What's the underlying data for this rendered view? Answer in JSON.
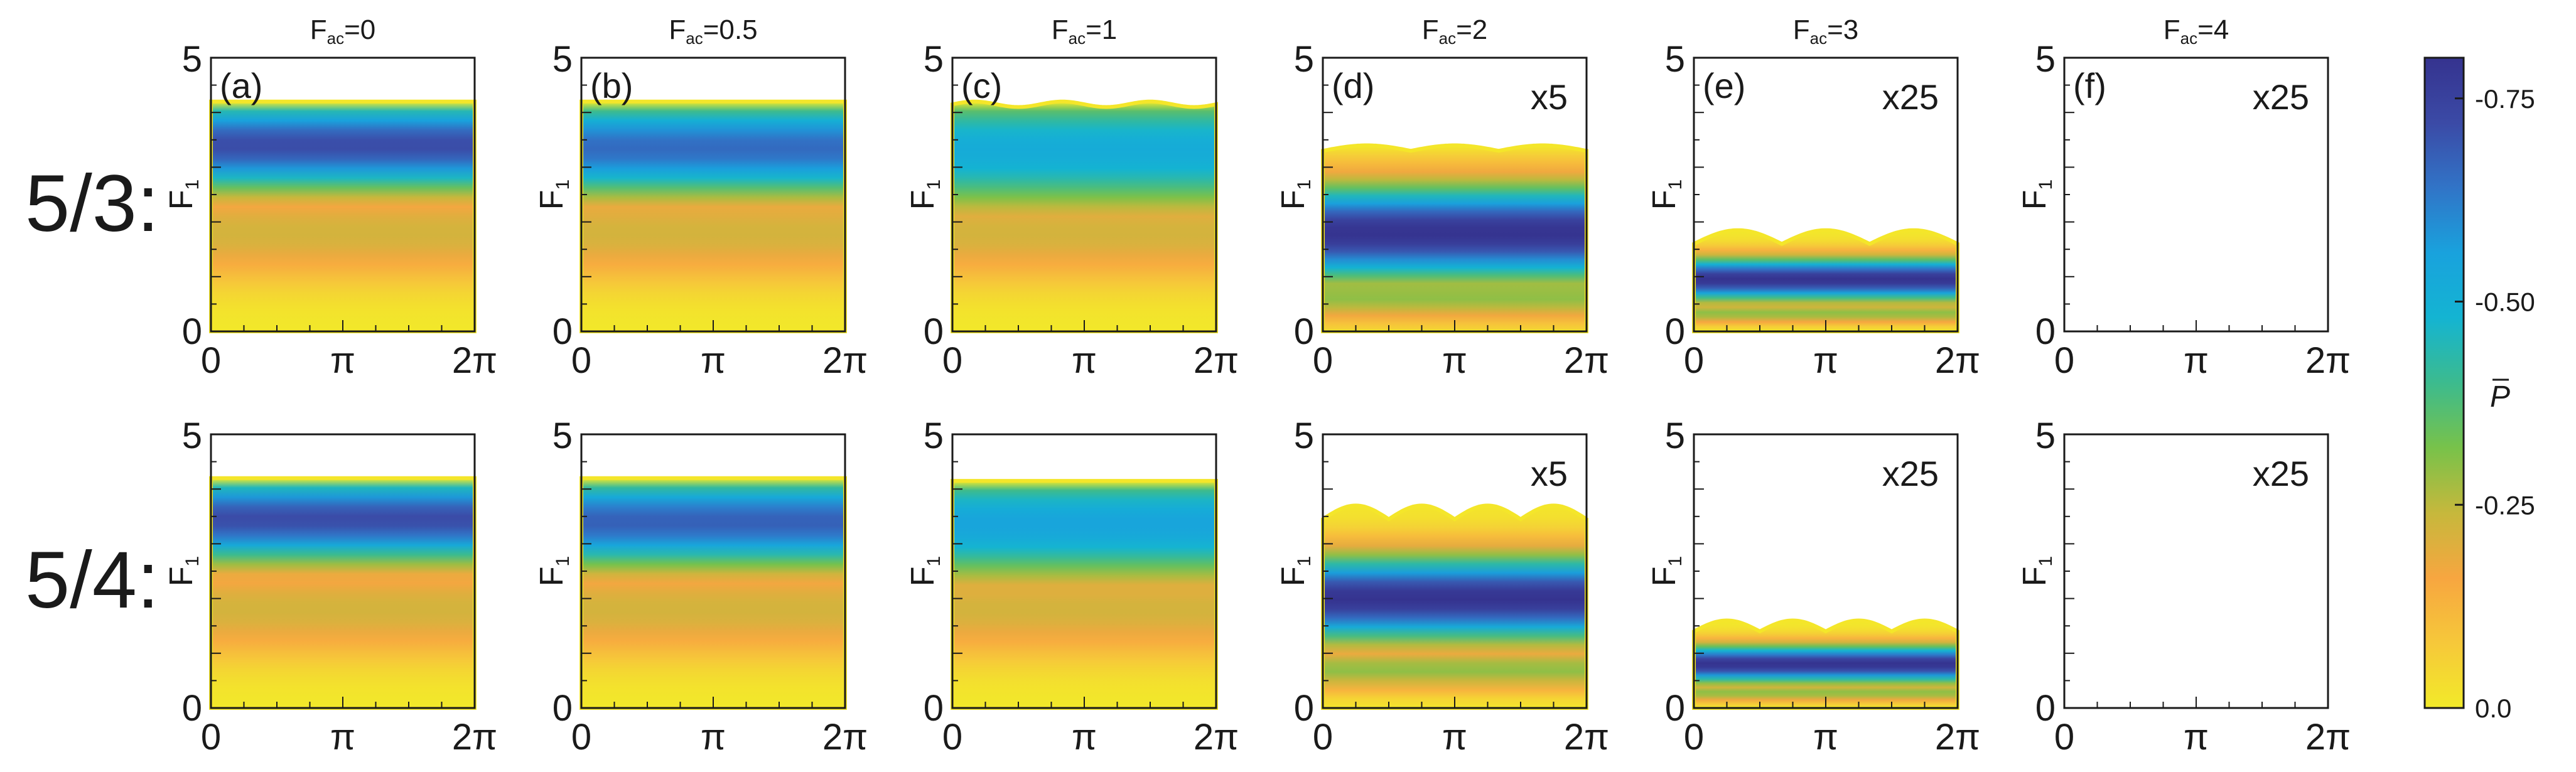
{
  "figure": {
    "rows": [
      {
        "label": "5/3:"
      },
      {
        "label": "5/4:"
      }
    ],
    "columns": [
      {
        "title_base": "F",
        "title_sub": "ac",
        "title_rest": "=0",
        "panel": "(a)",
        "scale": ""
      },
      {
        "title_base": "F",
        "title_sub": "ac",
        "title_rest": "=0.5",
        "panel": "(b)",
        "scale": ""
      },
      {
        "title_base": "F",
        "title_sub": "ac",
        "title_rest": "=1",
        "panel": "(c)",
        "scale": ""
      },
      {
        "title_base": "F",
        "title_sub": "ac",
        "title_rest": "=2",
        "panel": "(d)",
        "scale": "x5"
      },
      {
        "title_base": "F",
        "title_sub": "ac",
        "title_rest": "=3",
        "panel": "(e)",
        "scale": "x25"
      },
      {
        "title_base": "F",
        "title_sub": "ac",
        "title_rest": "=4",
        "panel": "(f)",
        "scale": "x25"
      }
    ]
  },
  "chart_data": {
    "type": "heatmap",
    "xlabel": "",
    "ylabel_base": "F",
    "ylabel_sub": "1",
    "xlim": [
      0,
      6.283
    ],
    "ylim": [
      0,
      5
    ],
    "xticks": [
      "0",
      "π",
      "2π"
    ],
    "yticks": [
      "0",
      "5"
    ],
    "colorbar": {
      "label": "P",
      "tick_labels": [
        "-0.75",
        "-0.50",
        "-0.25",
        "0.0"
      ],
      "tick_values": [
        -0.75,
        -0.5,
        -0.25,
        0.0
      ],
      "range": [
        -0.8,
        0.0
      ],
      "colors": [
        "#f2ea29",
        "#f6c83a",
        "#f7a640",
        "#c6b83c",
        "#78c24a",
        "#3cbb8e",
        "#14b4d2",
        "#19a2dd",
        "#3174c7",
        "#3b4aa6",
        "#35338f"
      ]
    },
    "panels": [
      {
        "row": 0,
        "col": 0,
        "ymax": 4.2,
        "wave_amp": 0.0,
        "wave_periods": 0,
        "bumps": false,
        "band_center": 3.4,
        "band_width": 0.9,
        "band_min": -0.72,
        "empty": false
      },
      {
        "row": 0,
        "col": 1,
        "ymax": 4.2,
        "wave_amp": 0.0,
        "wave_periods": 0,
        "bumps": false,
        "band_center": 3.35,
        "band_width": 0.95,
        "band_min": -0.66,
        "empty": false
      },
      {
        "row": 0,
        "col": 2,
        "ymax": 4.15,
        "wave_amp": 0.05,
        "wave_periods": 3,
        "bumps": false,
        "band_center": 3.3,
        "band_width": 1.2,
        "band_min": -0.52,
        "empty": false
      },
      {
        "row": 0,
        "col": 3,
        "ymax": 3.4,
        "wave_amp": 0.1,
        "wave_periods": 3,
        "bumps": true,
        "band_center": 1.8,
        "band_width": 0.9,
        "band_min": -0.8,
        "empty": false
      },
      {
        "row": 0,
        "col": 4,
        "ymax": 1.85,
        "wave_amp": 0.25,
        "wave_periods": 3,
        "bumps": true,
        "band_center": 0.95,
        "band_width": 0.4,
        "band_min": -0.8,
        "empty": false
      },
      {
        "row": 0,
        "col": 5,
        "ymax": 0.0,
        "wave_amp": 0.0,
        "wave_periods": 0,
        "bumps": false,
        "band_center": 0.0,
        "band_width": 0.0,
        "band_min": 0.0,
        "empty": true
      },
      {
        "row": 1,
        "col": 0,
        "ymax": 4.2,
        "wave_amp": 0.0,
        "wave_periods": 0,
        "bumps": false,
        "band_center": 3.45,
        "band_width": 0.85,
        "band_min": -0.72,
        "empty": false
      },
      {
        "row": 1,
        "col": 1,
        "ymax": 4.2,
        "wave_amp": 0.0,
        "wave_periods": 0,
        "bumps": false,
        "band_center": 3.4,
        "band_width": 0.9,
        "band_min": -0.68,
        "empty": false
      },
      {
        "row": 1,
        "col": 2,
        "ymax": 4.15,
        "wave_amp": 0.0,
        "wave_periods": 0,
        "bumps": false,
        "band_center": 3.35,
        "band_width": 1.1,
        "band_min": -0.55,
        "empty": false
      },
      {
        "row": 1,
        "col": 3,
        "ymax": 3.7,
        "wave_amp": 0.25,
        "wave_periods": 4,
        "bumps": true,
        "band_center": 2.0,
        "band_width": 0.8,
        "band_min": -0.8,
        "empty": false
      },
      {
        "row": 1,
        "col": 4,
        "ymax": 1.6,
        "wave_amp": 0.2,
        "wave_periods": 4,
        "bumps": true,
        "band_center": 0.8,
        "band_width": 0.35,
        "band_min": -0.8,
        "empty": false
      },
      {
        "row": 1,
        "col": 5,
        "ymax": 0.0,
        "wave_amp": 0.0,
        "wave_periods": 0,
        "bumps": false,
        "band_center": 0.0,
        "band_width": 0.0,
        "band_min": 0.0,
        "empty": true
      }
    ]
  }
}
